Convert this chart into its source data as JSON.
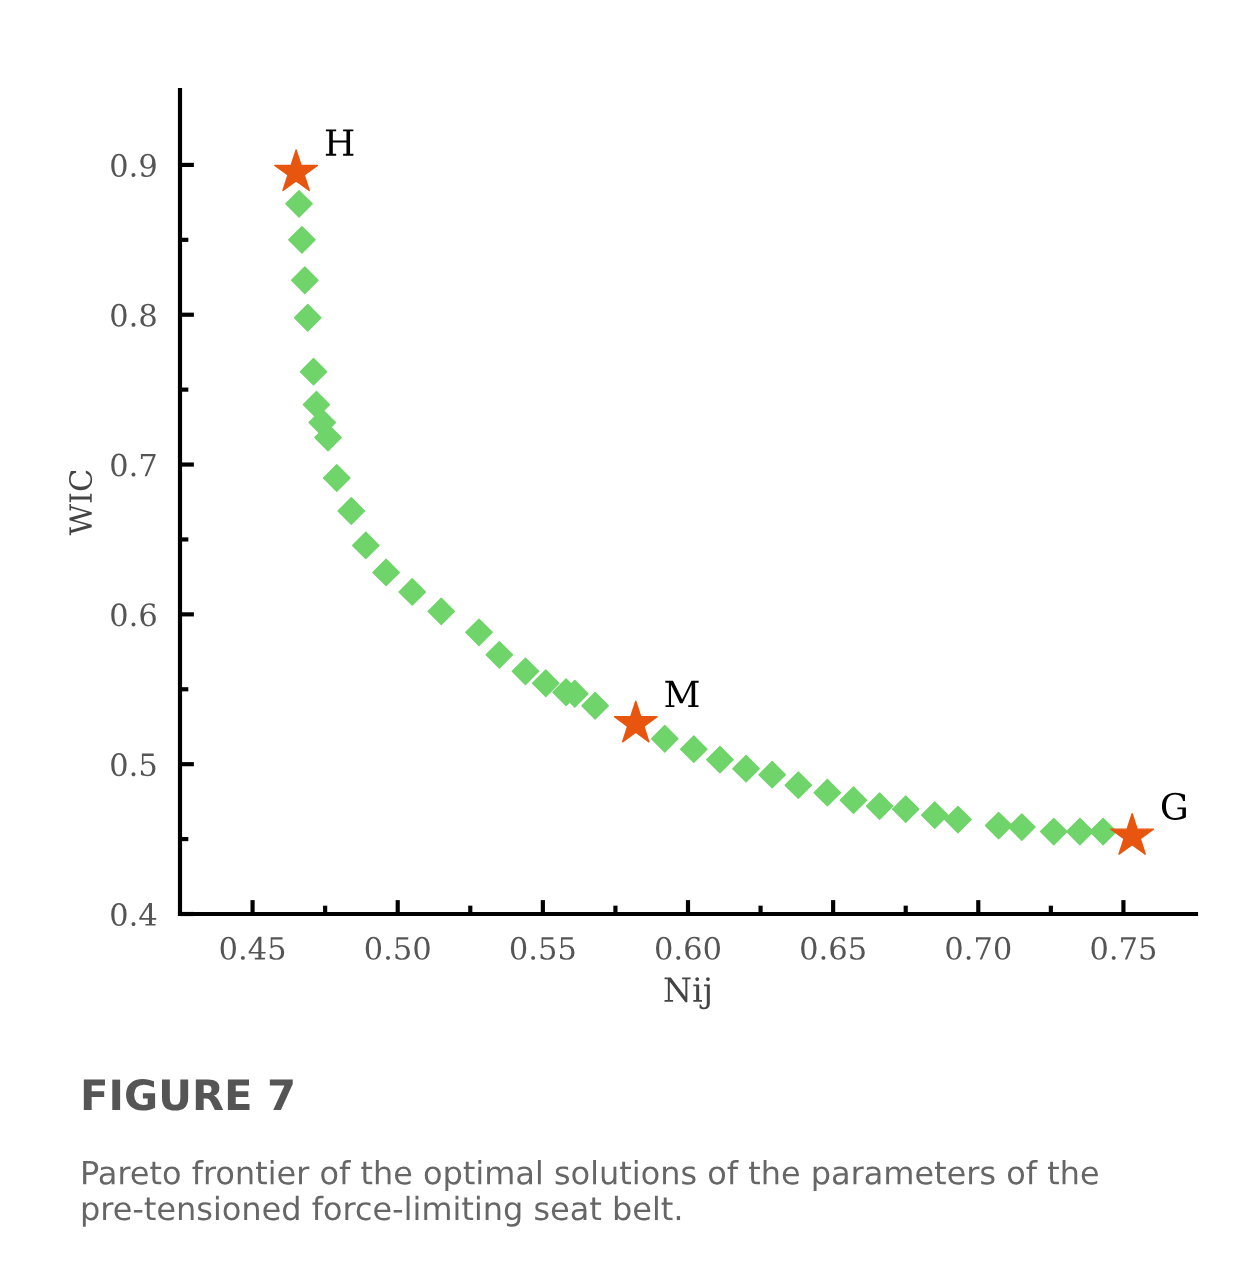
{
  "chart_data": {
    "type": "scatter",
    "xlabel": "Nij",
    "ylabel": "WIC",
    "xlim": [
      0.425,
      0.775
    ],
    "ylim": [
      0.4,
      0.95
    ],
    "xticks": [
      0.45,
      {
        "value": 0.475,
        "label": null
      },
      {
        "value": 0.5,
        "label": "0.50"
      },
      {
        "value": 0.525,
        "label": null
      },
      0.55,
      {
        "value": 0.575,
        "label": null
      },
      {
        "value": 0.6,
        "label": "0.60"
      },
      {
        "value": 0.625,
        "label": null
      },
      0.65,
      {
        "value": 0.675,
        "label": null
      },
      {
        "value": 0.7,
        "label": "0.70"
      },
      {
        "value": 0.725,
        "label": null
      },
      0.75
    ],
    "yticks": [
      0.4,
      {
        "value": 0.45,
        "label": null
      },
      0.5,
      {
        "value": 0.55,
        "label": null
      },
      0.6,
      {
        "value": 0.65,
        "label": null
      },
      0.7,
      {
        "value": 0.75,
        "label": null
      },
      0.8,
      {
        "value": 0.85,
        "label": null
      },
      0.9
    ],
    "grid": false,
    "series": [
      {
        "color": "#6fd46a",
        "marker": "diamond",
        "x": [
          0.466,
          0.467,
          0.468,
          0.469,
          0.471,
          0.472,
          0.474,
          0.476,
          0.479,
          0.484,
          0.489,
          0.496,
          0.505,
          0.515,
          0.528,
          0.535,
          0.544,
          0.551,
          0.558,
          0.561,
          0.568,
          0.592,
          0.602,
          0.611,
          0.62,
          0.629,
          0.638,
          0.648,
          0.657,
          0.666,
          0.675,
          0.685,
          0.693,
          0.707,
          0.715,
          0.726,
          0.735,
          0.743
        ],
        "values": [
          0.874,
          0.85,
          0.823,
          0.798,
          0.762,
          0.74,
          0.728,
          0.718,
          0.691,
          0.669,
          0.646,
          0.628,
          0.615,
          0.602,
          0.588,
          0.573,
          0.562,
          0.554,
          0.548,
          0.547,
          0.539,
          0.517,
          0.51,
          0.503,
          0.497,
          0.493,
          0.486,
          0.481,
          0.476,
          0.472,
          0.47,
          0.466,
          0.463,
          0.459,
          0.458,
          0.455,
          0.455,
          0.455
        ]
      },
      {
        "color": "#e8550f",
        "marker": "star",
        "x": [
          0.465,
          0.582,
          0.753
        ],
        "values": [
          0.895,
          0.527,
          0.452
        ]
      }
    ],
    "annotations": [
      {
        "text": "H",
        "x": 0.465,
        "y": 0.895
      },
      {
        "text": "M",
        "x": 0.582,
        "y": 0.527
      },
      {
        "text": "G",
        "x": 0.753,
        "y": 0.452
      },
      "FIGURE 7",
      "Pareto frontier of the optimal solutions of the parameters of the pre-tensioned force-limiting seat belt."
    ]
  }
}
